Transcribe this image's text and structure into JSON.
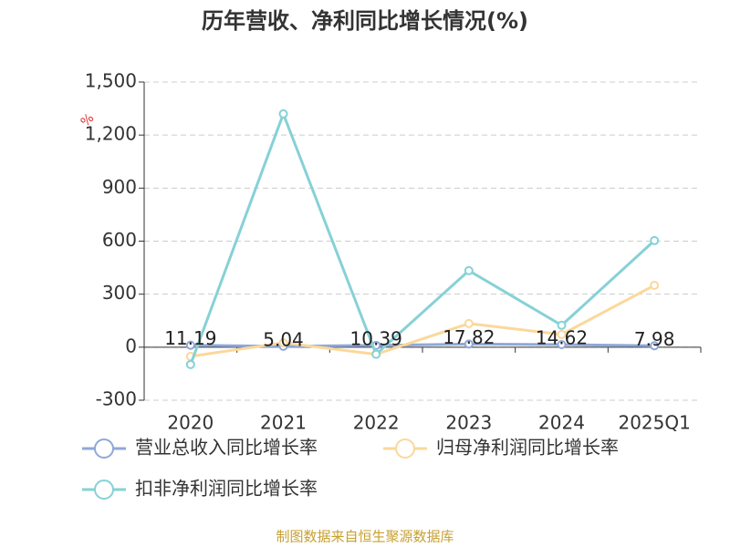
{
  "chart_data": {
    "type": "line",
    "title": "历年营收、净利同比增长情况(%)",
    "y_unit": "%",
    "categories": [
      "2020",
      "2021",
      "2022",
      "2023",
      "2024",
      "2025Q1"
    ],
    "series": [
      {
        "name": "营业总收入同比增长率",
        "color": "#8fa8d8",
        "values": [
          11.19,
          5.04,
          10.39,
          17.82,
          14.62,
          7.98
        ],
        "show_labels": true
      },
      {
        "name": "归母净利润同比增长率",
        "color": "#fbd89a",
        "values": [
          -52,
          25,
          -40,
          134,
          72,
          350
        ]
      },
      {
        "name": "扣非净利润同比增长率",
        "color": "#86d1d6",
        "values": [
          -98,
          1320,
          -40,
          433,
          124,
          603
        ]
      }
    ],
    "ylim": [
      -300,
      1500
    ],
    "yticks": [
      -300,
      0,
      300,
      600,
      900,
      {
        "value": 1200,
        "label": "1,200"
      },
      {
        "value": 1500,
        "label": "1,500"
      }
    ],
    "grid": true,
    "source": "制图数据来自恒生聚源数据库"
  }
}
